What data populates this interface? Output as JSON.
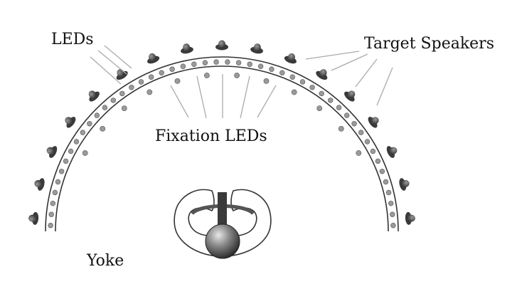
{
  "labels": {
    "leds": "LEDs",
    "target_speakers": "Target Speakers",
    "fixation_leds": "Fixation LEDs",
    "yoke": "Yoke"
  },
  "colors": {
    "line": "#333333",
    "leader": "#aaaaaa",
    "led_fill": "#9a9a9a",
    "speaker_dark": "#3a3a3a",
    "speaker_light": "#8c8c8c"
  },
  "icons": {
    "speaker": "speaker-icon",
    "led": "led-icon",
    "head": "head-icon"
  }
}
